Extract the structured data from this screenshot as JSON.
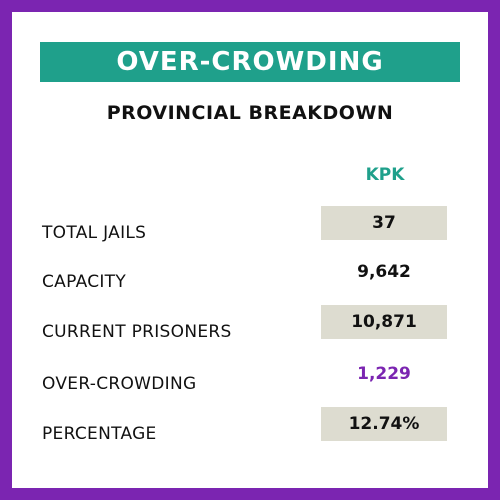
{
  "banner": {
    "title": "OVER-CROWDING"
  },
  "subtitle": "PROVINCIAL BREAKDOWN",
  "table": {
    "column_header": "KPK",
    "rows": [
      {
        "label": "TOTAL JAILS",
        "value": "37"
      },
      {
        "label": "CAPACITY",
        "value": "9,642"
      },
      {
        "label": "CURRENT PRISONERS",
        "value": "10,871"
      },
      {
        "label": "OVER-CROWDING",
        "value": "1,229"
      },
      {
        "label": "PERCENTAGE",
        "value": "12.74%"
      }
    ]
  },
  "colors": {
    "frame": "#7b25b1",
    "banner": "#1fa08b",
    "header_text": "#1fa08b",
    "shaded_cell": "#dddcd0",
    "highlight_value": "#7b25b1"
  }
}
